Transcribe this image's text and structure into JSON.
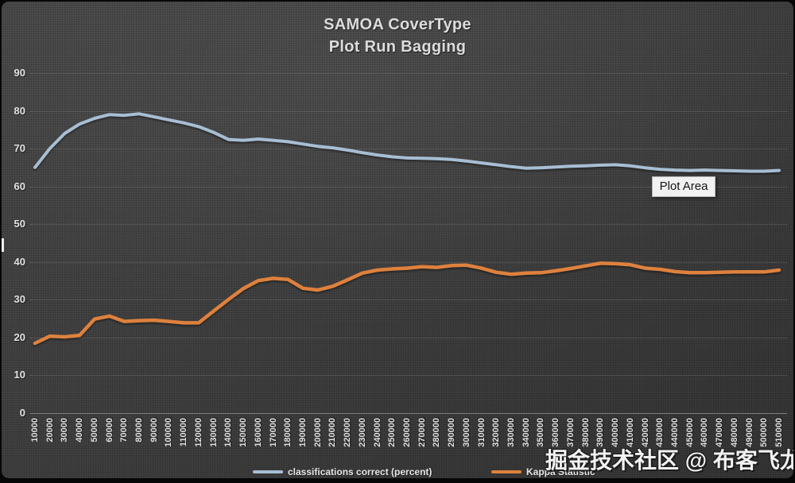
{
  "window": {
    "title_line1": "SAMOA CoverType",
    "title_line2": "Plot Run Bagging"
  },
  "plot_area_tooltip": "Plot Area",
  "watermark_text": "掘金技术社区 @ 布客飞龙",
  "y_axis_fragment": "|",
  "chart_data": {
    "type": "line",
    "title": "SAMOA CoverType Plot Run Bagging",
    "xlabel": "",
    "ylabel": "",
    "ylim": [
      0,
      90
    ],
    "yticks": [
      0,
      10,
      20,
      30,
      40,
      50,
      60,
      70,
      80,
      90
    ],
    "grid": true,
    "legend_position": "bottom",
    "x": [
      10000,
      20000,
      30000,
      40000,
      50000,
      60000,
      70000,
      80000,
      90000,
      100000,
      110000,
      120000,
      130000,
      140000,
      150000,
      160000,
      170000,
      180000,
      190000,
      200000,
      210000,
      220000,
      230000,
      240000,
      250000,
      260000,
      270000,
      280000,
      290000,
      300000,
      310000,
      320000,
      330000,
      340000,
      350000,
      360000,
      370000,
      380000,
      390000,
      400000,
      410000,
      420000,
      430000,
      440000,
      450000,
      460000,
      470000,
      480000,
      490000,
      500000,
      510000
    ],
    "series": [
      {
        "name": "classifications correct (percent)",
        "color": "#a7bed3",
        "values": [
          65.0,
          70.0,
          74.0,
          76.5,
          78.0,
          79.0,
          78.8,
          79.2,
          78.4,
          77.6,
          76.8,
          75.8,
          74.3,
          72.4,
          72.2,
          72.5,
          72.2,
          71.8,
          71.2,
          70.6,
          70.2,
          69.6,
          68.9,
          68.3,
          67.8,
          67.5,
          67.4,
          67.3,
          67.1,
          66.7,
          66.2,
          65.7,
          65.2,
          64.8,
          64.9,
          65.1,
          65.3,
          65.4,
          65.6,
          65.7,
          65.4,
          64.9,
          64.5,
          64.3,
          64.2,
          64.3,
          64.2,
          64.1,
          64.0,
          64.0,
          64.2
        ]
      },
      {
        "name": "Kappa Statistic",
        "color": "#de813d",
        "values": [
          18.4,
          20.3,
          20.1,
          20.5,
          24.8,
          25.6,
          24.2,
          24.4,
          24.5,
          24.2,
          23.8,
          23.8,
          26.9,
          30.0,
          32.9,
          35.0,
          35.6,
          35.3,
          33.0,
          32.5,
          33.5,
          35.2,
          37.0,
          37.8,
          38.1,
          38.3,
          38.7,
          38.5,
          39.0,
          39.1,
          38.3,
          37.2,
          36.7,
          37.0,
          37.1,
          37.6,
          38.2,
          38.9,
          39.6,
          39.5,
          39.2,
          38.3,
          38.0,
          37.4,
          37.1,
          37.1,
          37.2,
          37.3,
          37.3,
          37.3,
          37.8
        ]
      }
    ]
  }
}
